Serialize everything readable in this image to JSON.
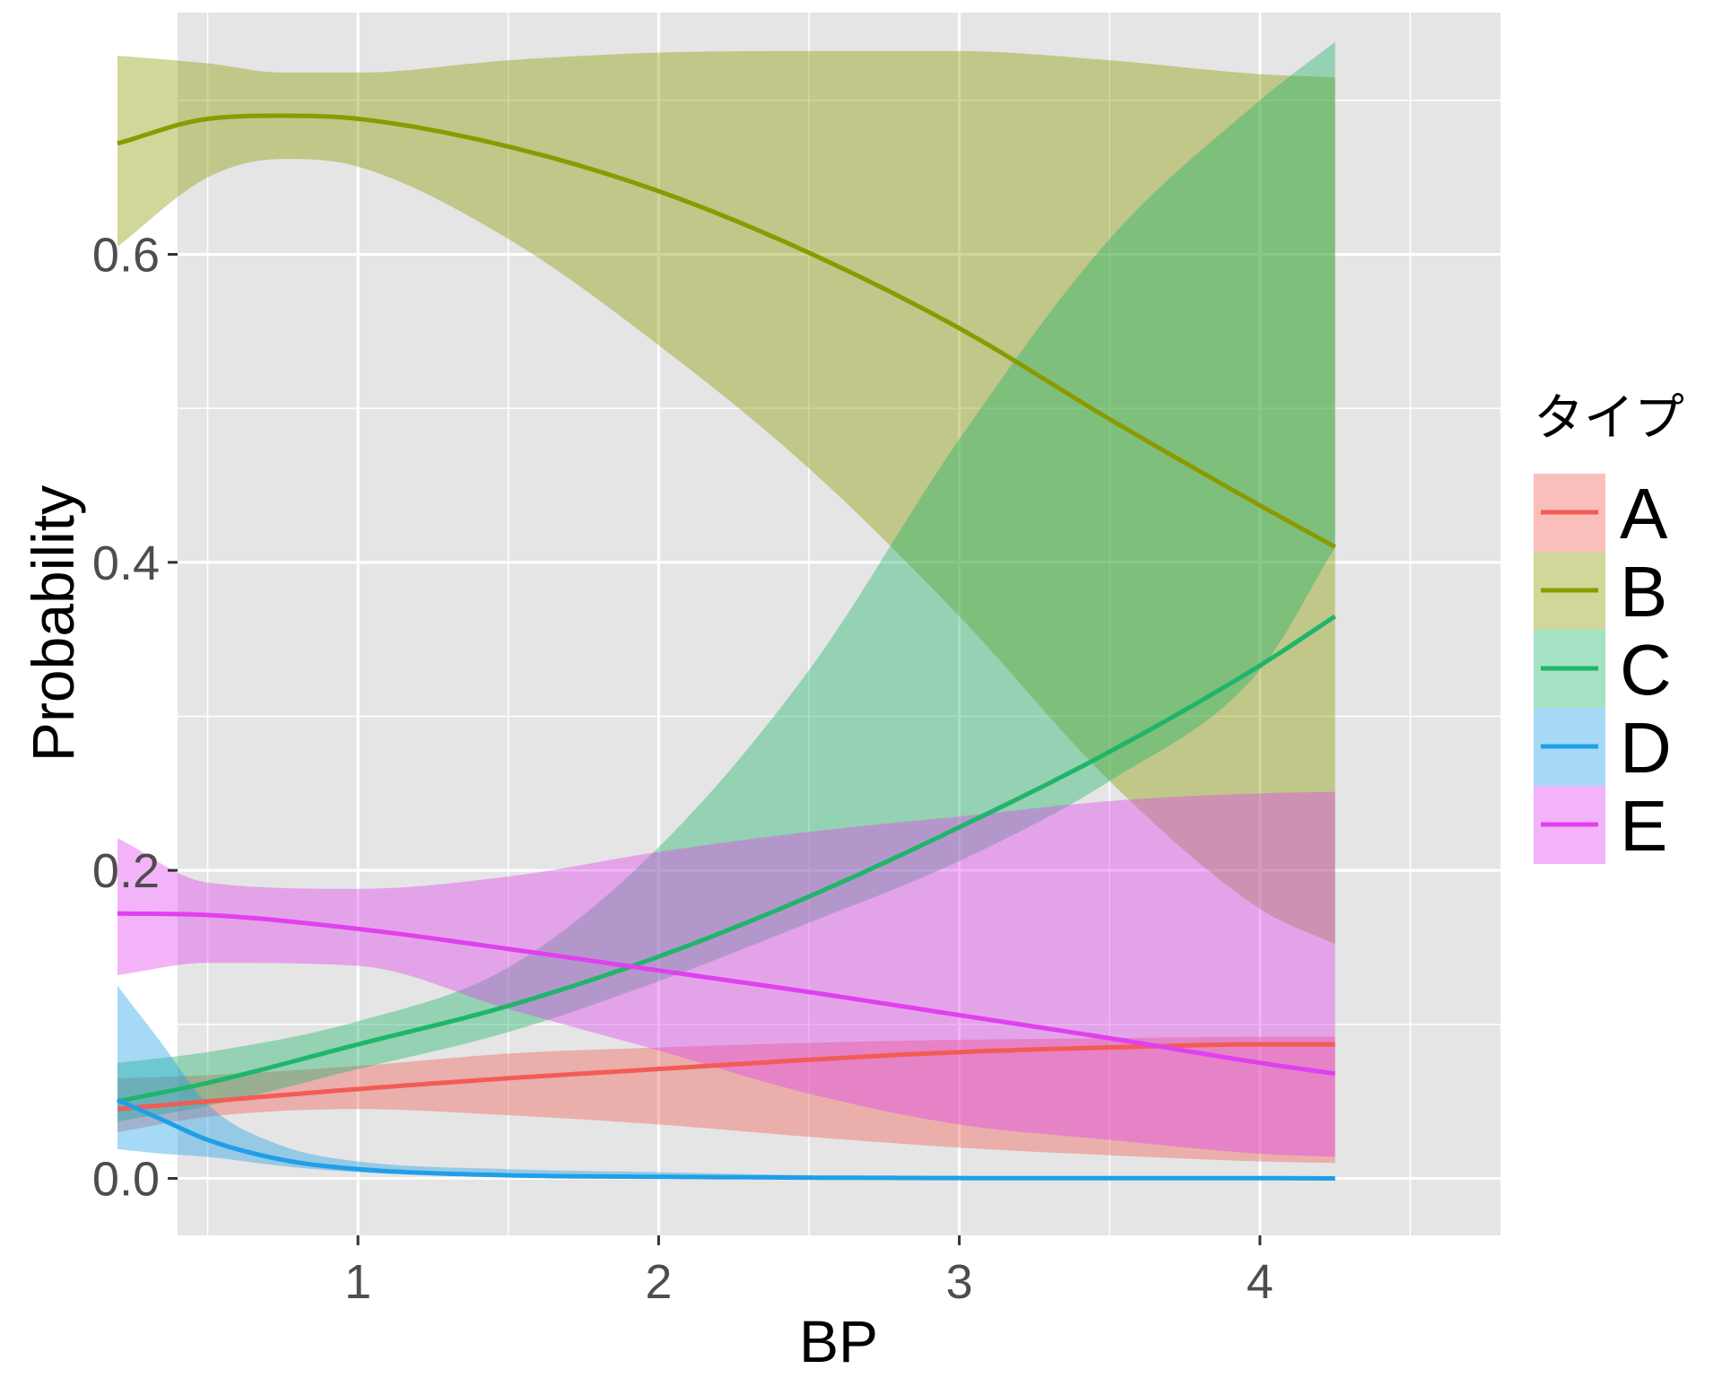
{
  "chart_data": {
    "type": "line",
    "xlabel": "BP",
    "ylabel": "Probability",
    "xlim": [
      0.4,
      4.8
    ],
    "ylim": [
      -0.037,
      0.757
    ],
    "xticks": [
      1,
      2,
      3,
      4
    ],
    "xtick_labels": [
      "1",
      "2",
      "3",
      "4"
    ],
    "yticks": [
      0.0,
      0.2,
      0.4,
      0.6
    ],
    "ytick_labels": [
      "0.0",
      "0.2",
      "0.4",
      "0.6"
    ],
    "grid": true,
    "background": "#e5e5e5",
    "legend": {
      "title": "タイプ",
      "position": "right"
    },
    "series": [
      {
        "name": "A",
        "color": "#f25c54",
        "fill": "#eeaaa9",
        "x": [
          0.2,
          0.5,
          1.0,
          1.5,
          2.0,
          2.5,
          3.0,
          3.5,
          4.0,
          4.25
        ],
        "y": [
          0.045,
          0.05,
          0.058,
          0.065,
          0.071,
          0.077,
          0.082,
          0.085,
          0.087,
          0.087
        ],
        "lower": [
          0.03,
          0.04,
          0.045,
          0.041,
          0.035,
          0.027,
          0.02,
          0.015,
          0.011,
          0.01
        ],
        "upper": [
          0.065,
          0.067,
          0.073,
          0.081,
          0.085,
          0.088,
          0.09,
          0.091,
          0.092,
          0.092
        ]
      },
      {
        "name": "B",
        "color": "#8a9a00",
        "fill": "#c6c88c",
        "x": [
          0.2,
          0.5,
          0.75,
          1.0,
          1.5,
          2.0,
          2.5,
          3.0,
          3.5,
          4.0,
          4.25
        ],
        "y": [
          0.672,
          0.688,
          0.69,
          0.688,
          0.67,
          0.641,
          0.601,
          0.552,
          0.493,
          0.437,
          0.41
        ],
        "lower": [
          0.605,
          0.65,
          0.662,
          0.657,
          0.61,
          0.541,
          0.461,
          0.365,
          0.258,
          0.175,
          0.152
        ],
        "upper": [
          0.729,
          0.724,
          0.718,
          0.718,
          0.726,
          0.731,
          0.732,
          0.732,
          0.726,
          0.717,
          0.715
        ]
      },
      {
        "name": "C",
        "color": "#1fb56a",
        "fill": "#94d1b4",
        "x": [
          0.2,
          0.5,
          1.0,
          1.5,
          2.0,
          2.5,
          3.0,
          3.5,
          4.0,
          4.25
        ],
        "y": [
          0.05,
          0.062,
          0.087,
          0.112,
          0.144,
          0.183,
          0.228,
          0.277,
          0.333,
          0.365
        ],
        "lower": [
          0.037,
          0.047,
          0.071,
          0.095,
          0.128,
          0.166,
          0.206,
          0.258,
          0.33,
          0.41
        ],
        "upper": [
          0.075,
          0.082,
          0.102,
          0.137,
          0.215,
          0.33,
          0.48,
          0.61,
          0.7,
          0.738
        ]
      },
      {
        "name": "D",
        "color": "#1f9fe8",
        "fill": "#98d0ee",
        "x": [
          0.2,
          0.35,
          0.5,
          0.75,
          1.0,
          1.5,
          2.0,
          2.5,
          3.0,
          3.5,
          4.0,
          4.25
        ],
        "y": [
          0.051,
          0.038,
          0.025,
          0.012,
          0.006,
          0.002,
          0.001,
          0.0005,
          0.0002,
          0.0001,
          0.0001,
          0.0
        ],
        "lower": [
          0.019,
          0.016,
          0.014,
          0.008,
          0.004,
          0.001,
          0.0005,
          0.0002,
          0.0001,
          0.0,
          0.0,
          0.0
        ],
        "upper": [
          0.125,
          0.087,
          0.048,
          0.021,
          0.011,
          0.006,
          0.004,
          0.002,
          0.001,
          0.0005,
          0.0003,
          0.0003
        ]
      },
      {
        "name": "E",
        "color": "#e040f0",
        "fill": "#e1a6e8",
        "x": [
          0.2,
          0.5,
          1.0,
          1.5,
          2.0,
          2.5,
          3.0,
          3.5,
          4.0,
          4.25
        ],
        "y": [
          0.172,
          0.171,
          0.162,
          0.149,
          0.135,
          0.121,
          0.106,
          0.091,
          0.075,
          0.068
        ],
        "lower": [
          0.132,
          0.14,
          0.138,
          0.11,
          0.083,
          0.055,
          0.035,
          0.025,
          0.016,
          0.014
        ],
        "upper": [
          0.221,
          0.192,
          0.188,
          0.196,
          0.212,
          0.225,
          0.235,
          0.245,
          0.25,
          0.251
        ]
      }
    ]
  }
}
